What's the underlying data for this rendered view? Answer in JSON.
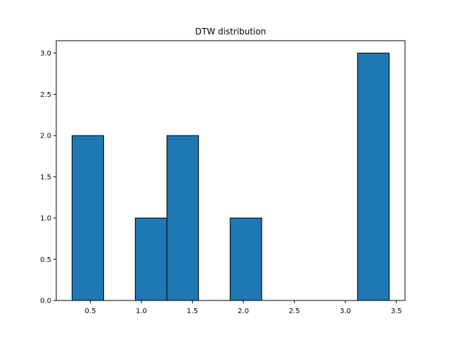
{
  "chart_data": {
    "type": "bar",
    "title": "DTW distribution",
    "xlabel": "",
    "ylabel": "",
    "bins": [
      {
        "x0": 0.32,
        "x1": 0.63,
        "count": 2
      },
      {
        "x0": 0.63,
        "x1": 0.94,
        "count": 0
      },
      {
        "x0": 0.94,
        "x1": 1.25,
        "count": 1
      },
      {
        "x0": 1.25,
        "x1": 1.56,
        "count": 2
      },
      {
        "x0": 1.56,
        "x1": 1.87,
        "count": 0
      },
      {
        "x0": 1.87,
        "x1": 2.18,
        "count": 1
      },
      {
        "x0": 2.18,
        "x1": 2.49,
        "count": 0
      },
      {
        "x0": 2.49,
        "x1": 2.8,
        "count": 0
      },
      {
        "x0": 2.8,
        "x1": 3.12,
        "count": 0
      },
      {
        "x0": 3.12,
        "x1": 3.43,
        "count": 3
      }
    ],
    "xlim": [
      0.165,
      3.585
    ],
    "ylim": [
      0,
      3.15
    ],
    "xticks": [
      0.5,
      1.0,
      1.5,
      2.0,
      2.5,
      3.0,
      3.5
    ],
    "xtick_labels": [
      "0.5",
      "1.0",
      "1.5",
      "2.0",
      "2.5",
      "3.0",
      "3.5"
    ],
    "yticks": [
      0,
      0.5,
      1.0,
      1.5,
      2.0,
      2.5,
      3.0
    ],
    "ytick_labels": [
      "0.0",
      "0.5",
      "1.0",
      "1.5",
      "2.0",
      "2.5",
      "3.0"
    ],
    "bar_color": "#1f77b4",
    "edge_color": "#000000",
    "grid": false,
    "legend": "none"
  }
}
